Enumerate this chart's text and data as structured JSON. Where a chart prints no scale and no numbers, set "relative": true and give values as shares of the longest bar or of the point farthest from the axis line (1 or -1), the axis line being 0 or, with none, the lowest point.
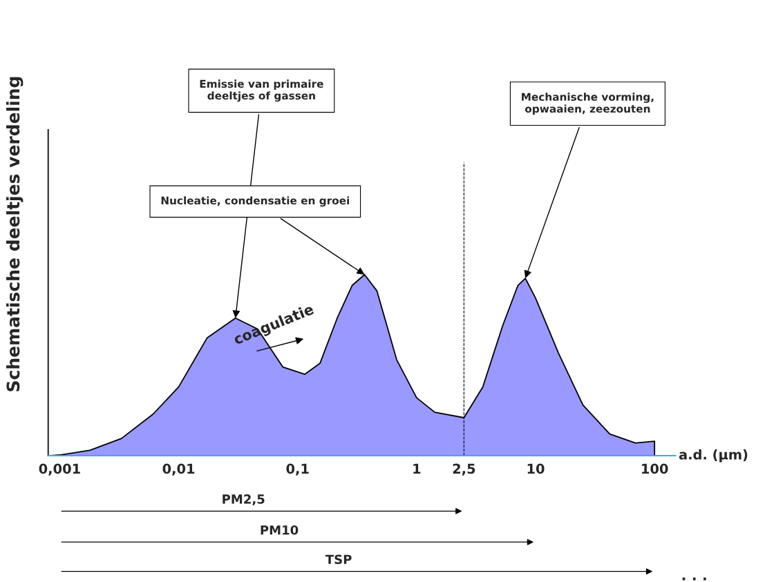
{
  "chart_data": {
    "type": "area",
    "relative": true,
    "log": "x",
    "ylabel": "Schematische deeltjes verdeling",
    "xlabel": "a.d. (µm)",
    "x": [
      0.0008,
      0.001,
      0.0018,
      0.0033,
      0.0061,
      0.01,
      0.0173,
      0.03,
      0.046,
      0.075,
      0.115,
      0.154,
      0.215,
      0.287,
      0.365,
      0.464,
      0.68,
      1,
      1.42,
      2.5,
      3.6,
      5.3,
      7.1,
      8.2,
      10,
      15.5,
      25,
      42,
      69,
      100,
      100
    ],
    "series": [
      {
        "color": "#9999ff",
        "values": [
          0,
          0.004,
          0.03,
          0.095,
          0.23,
          0.38,
          0.65,
          0.76,
          0.7,
          0.49,
          0.45,
          0.51,
          0.76,
          0.94,
          1.0,
          0.91,
          0.53,
          0.32,
          0.24,
          0.21,
          0.38,
          0.72,
          0.94,
          0.98,
          0.87,
          0.57,
          0.28,
          0.12,
          0.07,
          0.08,
          0
        ]
      }
    ],
    "xlim": [
      0.0008,
      150
    ],
    "xticks": [
      {
        "value": 0.001,
        "label": "0,001"
      },
      {
        "value": 0.01,
        "label": "0,01"
      },
      {
        "value": 0.1,
        "label": "0,1"
      },
      1,
      {
        "value": 2.5,
        "label": "2,5"
      },
      10,
      100
    ],
    "ref_lines": [
      {
        "axis": "x",
        "value": 2.5,
        "line_style": "dashed",
        "color": "#000000"
      }
    ],
    "annotations": [
      {
        "text": "Emissie van primaire\ndeeltjes of gassen",
        "x": 0.03,
        "y": 0.76
      },
      {
        "text": "Nucleatie, condensatie en groei",
        "x": 0.365,
        "y": 1.0
      },
      {
        "text": "Mechanische vorming,\nopwaaien, zeezouten",
        "x": 8.2,
        "y": 0.98
      },
      "coagulatie",
      "PM2,5",
      "PM10",
      "TSP",
      ". . ."
    ],
    "grid": false,
    "legend": false
  }
}
